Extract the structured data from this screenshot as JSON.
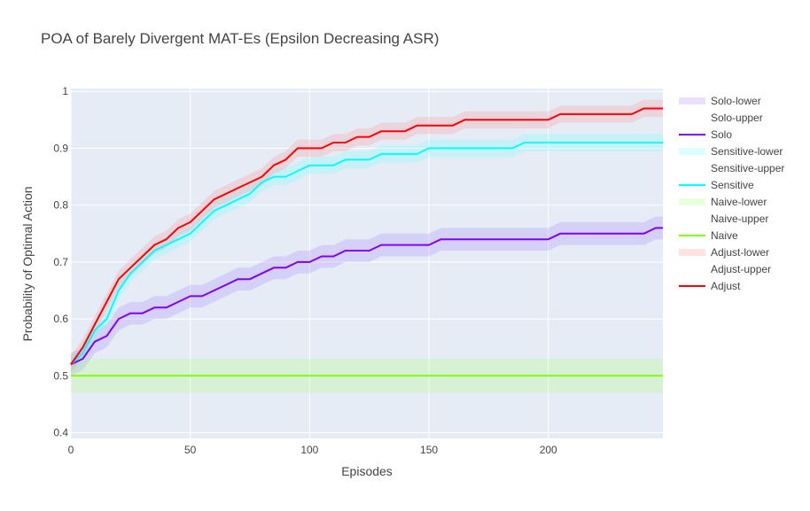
{
  "chart_data": {
    "type": "line",
    "title": "POA of Barely Divergent MAT-Es (Epsilon Decreasing ASR)",
    "xlabel": "Episodes",
    "ylabel": "Probability of Optimal Action",
    "xlim": [
      0,
      248
    ],
    "ylim": [
      0.39,
      1.005
    ],
    "x_ticks": [
      0,
      50,
      100,
      150,
      200
    ],
    "y_ticks": [
      0.4,
      0.5,
      0.6,
      0.7,
      0.8,
      0.9,
      1
    ],
    "y_tick_labels": [
      "0.4",
      "0.5",
      "0.6",
      "0.7",
      "0.8",
      "0.9",
      "1"
    ],
    "grid": true,
    "legend_position": "right",
    "legend": [
      "Solo-lower",
      "Solo-upper",
      "Solo",
      "Sensitive-lower",
      "Sensitive-upper",
      "Sensitive",
      "Naive-lower",
      "Naive-upper",
      "Naive",
      "Adjust-lower",
      "Adjust-upper",
      "Adjust"
    ],
    "x": [
      0,
      5,
      10,
      15,
      20,
      25,
      30,
      35,
      40,
      45,
      50,
      55,
      60,
      65,
      70,
      75,
      80,
      85,
      90,
      95,
      100,
      105,
      110,
      115,
      120,
      125,
      130,
      135,
      140,
      145,
      150,
      155,
      160,
      165,
      170,
      175,
      180,
      185,
      190,
      195,
      200,
      205,
      210,
      215,
      220,
      225,
      230,
      235,
      240,
      245,
      248
    ],
    "series": [
      {
        "name": "Solo",
        "color": "#8000ff",
        "band_color": "rgba(160,110,255,0.22)",
        "band": 0.02,
        "values": [
          0.52,
          0.53,
          0.56,
          0.57,
          0.6,
          0.61,
          0.61,
          0.62,
          0.62,
          0.63,
          0.64,
          0.64,
          0.65,
          0.66,
          0.67,
          0.67,
          0.68,
          0.69,
          0.69,
          0.7,
          0.7,
          0.71,
          0.71,
          0.72,
          0.72,
          0.72,
          0.73,
          0.73,
          0.73,
          0.73,
          0.73,
          0.74,
          0.74,
          0.74,
          0.74,
          0.74,
          0.74,
          0.74,
          0.74,
          0.74,
          0.74,
          0.75,
          0.75,
          0.75,
          0.75,
          0.75,
          0.75,
          0.75,
          0.75,
          0.76,
          0.76
        ]
      },
      {
        "name": "Sensitive",
        "color": "#00ffff",
        "band_color": "rgba(120,255,255,0.28)",
        "band": 0.015,
        "values": [
          0.52,
          0.54,
          0.58,
          0.6,
          0.65,
          0.68,
          0.7,
          0.72,
          0.73,
          0.74,
          0.75,
          0.77,
          0.79,
          0.8,
          0.81,
          0.82,
          0.84,
          0.85,
          0.85,
          0.86,
          0.87,
          0.87,
          0.87,
          0.88,
          0.88,
          0.88,
          0.89,
          0.89,
          0.89,
          0.89,
          0.9,
          0.9,
          0.9,
          0.9,
          0.9,
          0.9,
          0.9,
          0.9,
          0.91,
          0.91,
          0.91,
          0.91,
          0.91,
          0.91,
          0.91,
          0.91,
          0.91,
          0.91,
          0.91,
          0.91,
          0.91
        ]
      },
      {
        "name": "Naive",
        "color": "#80ff00",
        "band_color": "rgba(170,255,110,0.25)",
        "band": 0.03,
        "values": [
          0.5,
          0.5,
          0.5,
          0.5,
          0.5,
          0.5,
          0.5,
          0.5,
          0.5,
          0.5,
          0.5,
          0.5,
          0.5,
          0.5,
          0.5,
          0.5,
          0.5,
          0.5,
          0.5,
          0.5,
          0.5,
          0.5,
          0.5,
          0.5,
          0.5,
          0.5,
          0.5,
          0.5,
          0.5,
          0.5,
          0.5,
          0.5,
          0.5,
          0.5,
          0.5,
          0.5,
          0.5,
          0.5,
          0.5,
          0.5,
          0.5,
          0.5,
          0.5,
          0.5,
          0.5,
          0.5,
          0.5,
          0.5,
          0.5,
          0.5,
          0.5
        ]
      },
      {
        "name": "Adjust",
        "color": "#ff0000",
        "band_color": "rgba(255,140,140,0.25)",
        "band": 0.015,
        "values": [
          0.52,
          0.55,
          0.59,
          0.63,
          0.67,
          0.69,
          0.71,
          0.73,
          0.74,
          0.76,
          0.77,
          0.79,
          0.81,
          0.82,
          0.83,
          0.84,
          0.85,
          0.87,
          0.88,
          0.9,
          0.9,
          0.9,
          0.91,
          0.91,
          0.92,
          0.92,
          0.93,
          0.93,
          0.93,
          0.94,
          0.94,
          0.94,
          0.94,
          0.95,
          0.95,
          0.95,
          0.95,
          0.95,
          0.95,
          0.95,
          0.95,
          0.96,
          0.96,
          0.96,
          0.96,
          0.96,
          0.96,
          0.96,
          0.97,
          0.97,
          0.97
        ]
      }
    ]
  }
}
